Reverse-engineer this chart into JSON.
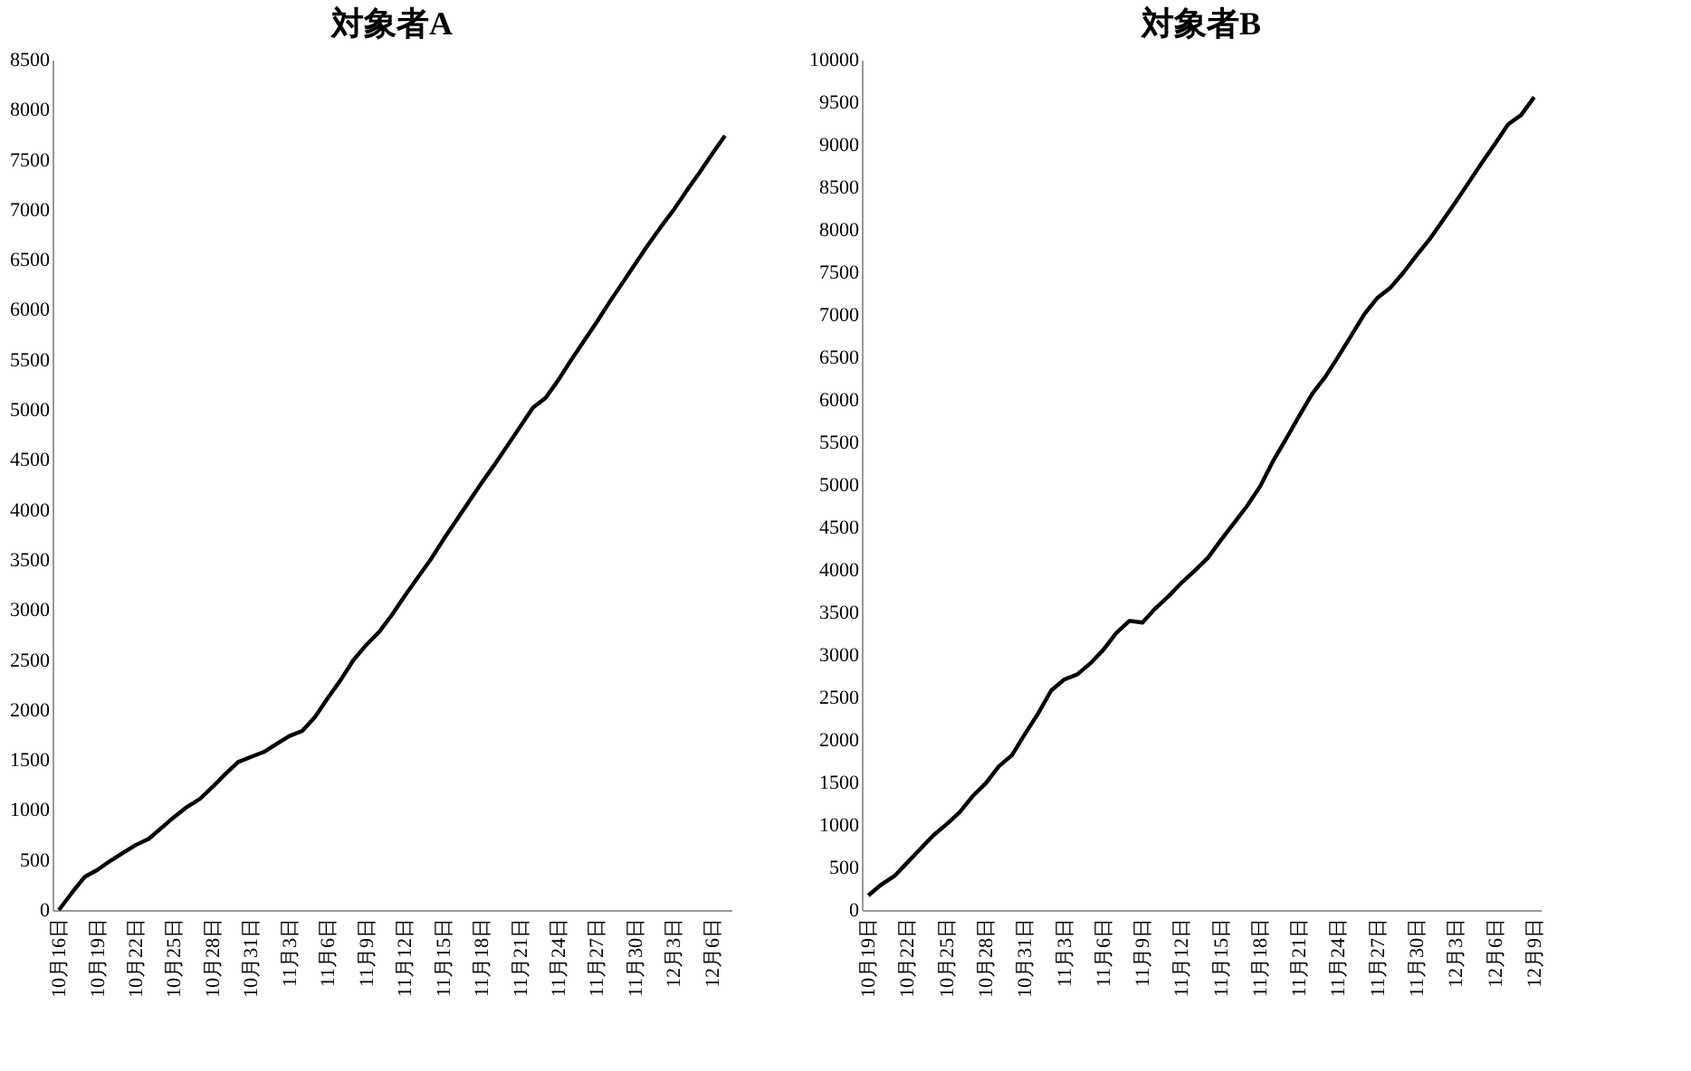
{
  "chart_data": [
    {
      "type": "line",
      "title": "対象者A",
      "categories": [
        "10月16日",
        null,
        null,
        "10月19日",
        null,
        null,
        "10月22日",
        null,
        null,
        "10月25日",
        null,
        null,
        "10月28日",
        null,
        null,
        "10月31日",
        null,
        null,
        "11月3日",
        null,
        null,
        "11月6日",
        null,
        null,
        "11月9日",
        null,
        null,
        "11月12日",
        null,
        null,
        "11月15日",
        null,
        null,
        "11月18日",
        null,
        null,
        "11月21日",
        null,
        null,
        "11月24日",
        null,
        null,
        "11月27日",
        null,
        null,
        "11月30日",
        null,
        null,
        "12月3日",
        null,
        null,
        "12月6日",
        null
      ],
      "series": [
        {
          "color": "#000000",
          "values": [
            0,
            170,
            330,
            400,
            490,
            570,
            650,
            710,
            820,
            930,
            1030,
            1110,
            1230,
            1360,
            1480,
            1530,
            1580,
            1660,
            1740,
            1790,
            1930,
            2120,
            2300,
            2500,
            2650,
            2780,
            2950,
            3140,
            3320,
            3500,
            3700,
            3890,
            4080,
            4270,
            4450,
            4640,
            4830,
            5020,
            5120,
            5300,
            5500,
            5690,
            5880,
            6080,
            6270,
            6460,
            6650,
            6830,
            7000,
            7190,
            7370,
            7560,
            7740
          ]
        }
      ],
      "ylim": [
        0,
        8500
      ],
      "yticks": [
        0,
        500,
        1000,
        1500,
        2000,
        2500,
        3000,
        3500,
        4000,
        4500,
        5000,
        5500,
        6000,
        6500,
        7000,
        7500,
        8000,
        8500
      ],
      "grid": false,
      "legend": false,
      "marker": "none",
      "line_style": "solid"
    },
    {
      "type": "line",
      "title": "対象者B",
      "categories": [
        "10月19日",
        null,
        null,
        "10月22日",
        null,
        null,
        "10月25日",
        null,
        null,
        "10月28日",
        null,
        null,
        "10月31日",
        null,
        null,
        "11月3日",
        null,
        null,
        "11月6日",
        null,
        null,
        "11月9日",
        null,
        null,
        "11月12日",
        null,
        null,
        "11月15日",
        null,
        null,
        "11月18日",
        null,
        null,
        "11月21日",
        null,
        null,
        "11月24日",
        null,
        null,
        "11月27日",
        null,
        null,
        "11月30日",
        null,
        null,
        "12月3日",
        null,
        null,
        "12月6日",
        null,
        null,
        "12月9日"
      ],
      "series": [
        {
          "color": "#000000",
          "values": [
            170,
            300,
            400,
            560,
            720,
            880,
            1010,
            1150,
            1340,
            1490,
            1690,
            1820,
            2070,
            2310,
            2580,
            2710,
            2770,
            2900,
            3060,
            3260,
            3400,
            3380,
            3550,
            3690,
            3850,
            3990,
            4140,
            4350,
            4550,
            4750,
            4980,
            5280,
            5540,
            5810,
            6070,
            6270,
            6510,
            6760,
            7010,
            7200,
            7320,
            7500,
            7700,
            7890,
            8110,
            8330,
            8560,
            8790,
            9010,
            9240,
            9350,
            9560
          ]
        }
      ],
      "ylim": [
        0,
        10000
      ],
      "yticks": [
        0,
        500,
        1000,
        1500,
        2000,
        2500,
        3000,
        3500,
        4000,
        4500,
        5000,
        5500,
        6000,
        6500,
        7000,
        7500,
        8000,
        8500,
        9000,
        9500,
        10000
      ],
      "grid": false,
      "legend": false,
      "marker": "none",
      "line_style": "solid"
    }
  ]
}
